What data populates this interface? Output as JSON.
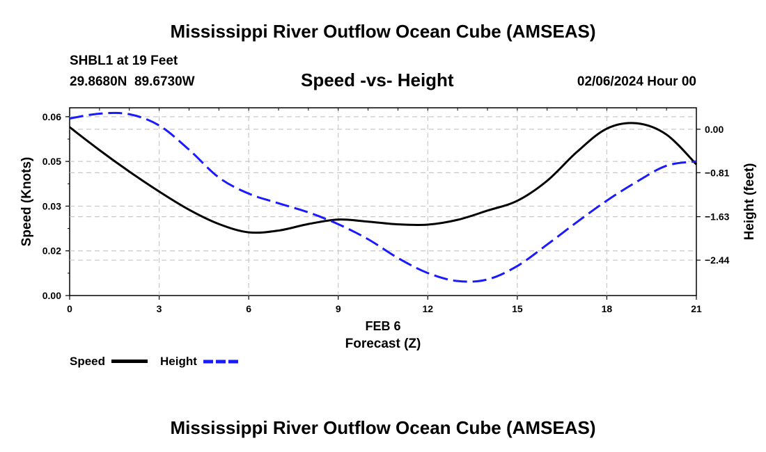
{
  "page_title": "Mississippi River Outflow Ocean Cube (AMSEAS)",
  "station": {
    "name_line": "SHBL1 at 19 Feet",
    "coords_line": "29.8680N  89.6730W",
    "datetime": "02/06/2024 Hour 00"
  },
  "footer_title": "Mississippi River Outflow Ocean Cube (AMSEAS)",
  "chart_data": {
    "type": "line",
    "title": "Speed -vs- Height",
    "xlabel_date": "FEB 6",
    "xlabel": "Forecast (Z)",
    "ylabel_left": "Speed (Knots)",
    "ylabel_right": "Height (feet)",
    "xlim": [
      0,
      21
    ],
    "ylim_left": [
      0,
      0.063
    ],
    "ylim_right": [
      -3.1,
      0.4
    ],
    "x_ticks": [
      0,
      3,
      6,
      9,
      12,
      15,
      18,
      21
    ],
    "x_tick_labels": [
      "0",
      "3",
      "6",
      "9",
      "12",
      "15",
      "18",
      "21"
    ],
    "y_left_ticks": [
      0,
      0.015,
      0.03,
      0.045,
      0.06
    ],
    "y_left_tick_labels": [
      "0.00",
      "0.02",
      "0.03",
      "0.05",
      "0.06"
    ],
    "y_right_ticks": [
      0.0,
      -0.81,
      -1.63,
      -2.44
    ],
    "y_right_tick_labels": [
      "0.00",
      "−0.81",
      "−1.63",
      "−2.44"
    ],
    "grid": true,
    "legend": [
      {
        "label": "Speed",
        "color": "#000000",
        "style": "solid"
      },
      {
        "label": "Height",
        "color": "#1a1aff",
        "style": "dashed"
      }
    ],
    "series": [
      {
        "name": "Speed",
        "axis": "left",
        "color": "#000000",
        "x": [
          0,
          1,
          2,
          3,
          4,
          5,
          6,
          7,
          8,
          9,
          10,
          11,
          12,
          13,
          14,
          15,
          16,
          17,
          18,
          19,
          20,
          21
        ],
        "values": [
          0.0565,
          0.0488,
          0.0416,
          0.0349,
          0.0288,
          0.024,
          0.0212,
          0.0218,
          0.024,
          0.0255,
          0.0248,
          0.0239,
          0.0238,
          0.0254,
          0.0285,
          0.0318,
          0.0385,
          0.0482,
          0.056,
          0.0578,
          0.054,
          0.044
        ]
      },
      {
        "name": "Height",
        "axis": "right",
        "color": "#1a1aff",
        "x": [
          0,
          1,
          2,
          3,
          4,
          5,
          6,
          7,
          8,
          9,
          10,
          11,
          12,
          13,
          14,
          15,
          16,
          17,
          18,
          19,
          20,
          21
        ],
        "values": [
          0.2,
          0.29,
          0.28,
          0.07,
          -0.38,
          -0.9,
          -1.2,
          -1.38,
          -1.55,
          -1.77,
          -2.05,
          -2.4,
          -2.68,
          -2.83,
          -2.8,
          -2.55,
          -2.15,
          -1.73,
          -1.33,
          -0.98,
          -0.68,
          -0.6
        ]
      }
    ]
  }
}
